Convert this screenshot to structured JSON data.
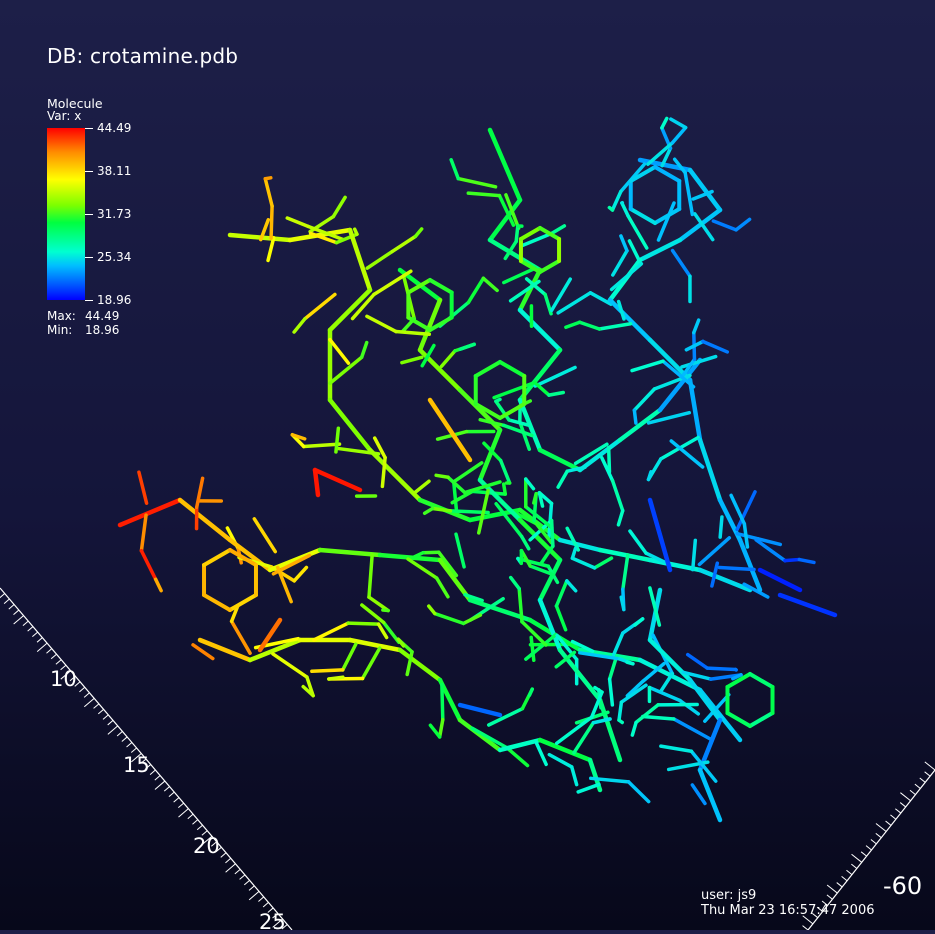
{
  "db_title": "DB: crotamine.pdb",
  "legend": {
    "name": "Molecule",
    "var": "Var: x",
    "ticks": [
      "44.49",
      "38.11",
      "31.73",
      "25.34",
      "18.96"
    ],
    "max_label": "Max:",
    "max_value": "44.49",
    "min_label": "Min:",
    "min_value": "18.96",
    "colormap": [
      "#ff0000",
      "#ff8c00",
      "#ffff00",
      "#7cff00",
      "#00ff40",
      "#00ffd0",
      "#00bfff",
      "#0050ff",
      "#0000ff"
    ]
  },
  "axes": {
    "left_axis_labels": [
      "10",
      "15",
      "20",
      "25"
    ],
    "right_axis_label": "-60"
  },
  "user_info": {
    "user": "user: js9",
    "timestamp": "Thu Mar 23 16:57:47 2006"
  }
}
